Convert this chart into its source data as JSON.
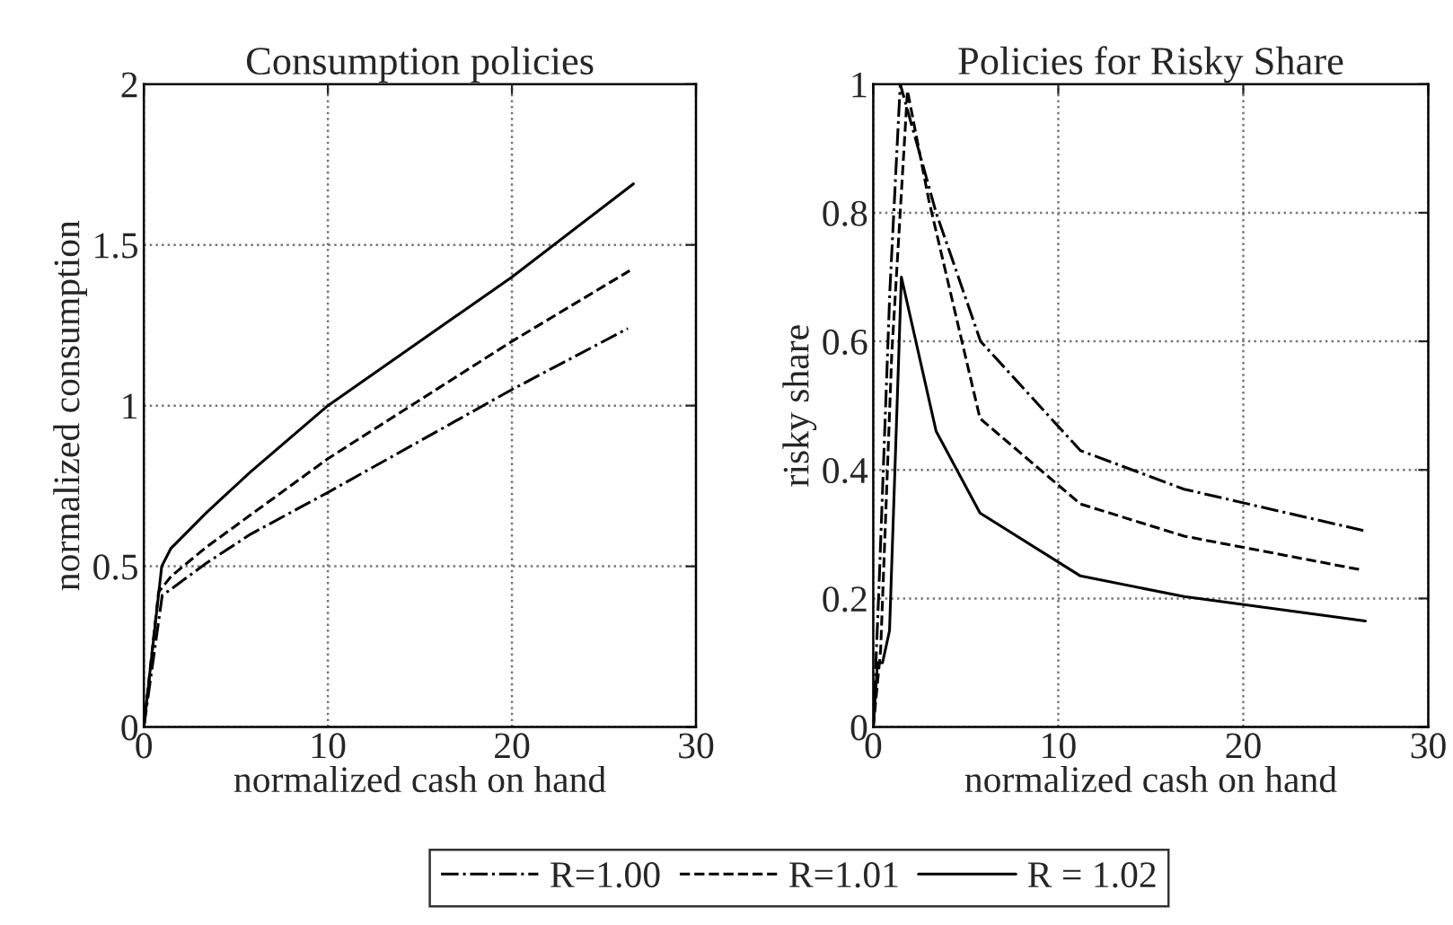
{
  "chart_data": [
    {
      "type": "line",
      "title": "Consumption policies",
      "xlabel": "normalized cash on hand",
      "ylabel": "normalized consumption",
      "xlim": [
        0,
        30
      ],
      "ylim": [
        0,
        2
      ],
      "xticks": [
        0,
        10,
        20,
        30
      ],
      "yticks": [
        0,
        0.5,
        1,
        1.5,
        2
      ],
      "grid": true,
      "legend": "bottom",
      "series": [
        {
          "name": "R=1.00",
          "color": "#000000",
          "line_style": "dashdot",
          "x": [
            0,
            1.0,
            1.5,
            3.4,
            5.8,
            10,
            20,
            26.3
          ],
          "values": [
            0,
            0.41,
            0.43,
            0.51,
            0.6,
            0.73,
            1.05,
            1.24
          ]
        },
        {
          "name": "R=1.01",
          "color": "#000000",
          "line_style": "dashed",
          "x": [
            0,
            0.8,
            1.5,
            3.4,
            5.8,
            10,
            20,
            26.4
          ],
          "values": [
            0,
            0.42,
            0.47,
            0.56,
            0.66,
            0.835,
            1.2,
            1.42
          ]
        },
        {
          "name": "R = 1.02",
          "color": "#000000",
          "line_style": "solid",
          "x": [
            0,
            0.97,
            1.46,
            3.4,
            5.8,
            10,
            20,
            26.6
          ],
          "values": [
            0,
            0.5,
            0.555,
            0.667,
            0.794,
            1.0,
            1.4,
            1.69
          ]
        }
      ]
    },
    {
      "type": "line",
      "title": "Policies for Risky Share",
      "xlabel": "normalized cash on hand",
      "ylabel": "risky share",
      "xlim": [
        0,
        30
      ],
      "ylim": [
        0,
        1
      ],
      "xticks": [
        0,
        10,
        20,
        30
      ],
      "yticks": [
        0,
        0.2,
        0.4,
        0.6,
        0.8,
        1
      ],
      "grid": true,
      "series": [
        {
          "color": "#000000",
          "line_style": "dashdot",
          "x": [
            0,
            0.3,
            0.9,
            1.46,
            3.4,
            5.8,
            11.2,
            16.8,
            26.6
          ],
          "values": [
            0,
            0.21,
            0.68,
            1.0,
            0.8,
            0.6,
            0.43,
            0.37,
            0.305
          ]
        },
        {
          "color": "#000000",
          "line_style": "dashed",
          "x": [
            0,
            0.4,
            1.0,
            1.85,
            3.0,
            5.77,
            11.2,
            16.8,
            26.3
          ],
          "values": [
            0,
            0.12,
            0.58,
            0.99,
            0.82,
            0.48,
            0.347,
            0.297,
            0.245
          ]
        },
        {
          "color": "#000000",
          "line_style": "solid",
          "x": [
            0,
            0.23,
            0.5,
            0.88,
            1.52,
            3.4,
            5.77,
            11.2,
            16.8,
            26.6
          ],
          "values": [
            0,
            0.1,
            0.1,
            0.15,
            0.7,
            0.46,
            0.333,
            0.235,
            0.203,
            0.165
          ]
        }
      ]
    }
  ]
}
